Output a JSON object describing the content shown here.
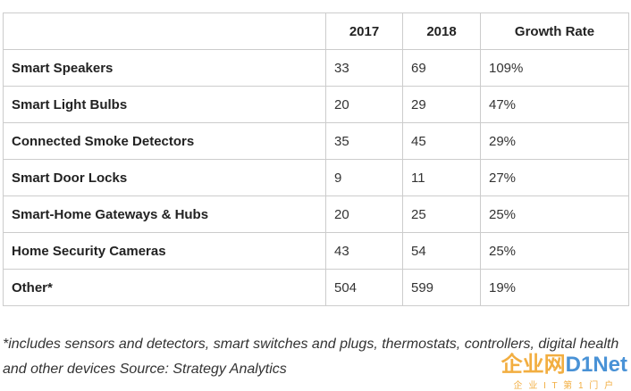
{
  "table": {
    "header": [
      "2017",
      "2018",
      "Growth Rate"
    ],
    "rows": [
      [
        "Smart Speakers",
        "33",
        "69",
        "109%"
      ],
      [
        "Smart Light Bulbs",
        "20",
        "29",
        "47%"
      ],
      [
        "Connected Smoke Detectors",
        "35",
        "45",
        "29%"
      ],
      [
        "Smart Door Locks",
        "9",
        "11",
        "27%"
      ],
      [
        "Smart-Home Gateways & Hubs",
        "20",
        "25",
        "25%"
      ],
      [
        "Home Security Cameras",
        "43",
        "54",
        "25%"
      ],
      [
        "Other*",
        "504",
        "599",
        "19%"
      ]
    ]
  },
  "footnote": "*includes sensors and detectors, smart switches and plugs, thermostats, controllers, digital health and other devices Source: Strategy Analytics",
  "watermark": {
    "brand": "企业网",
    "logo": "D1Net",
    "tagline": "企 业 I T 第 1 门 户"
  }
}
